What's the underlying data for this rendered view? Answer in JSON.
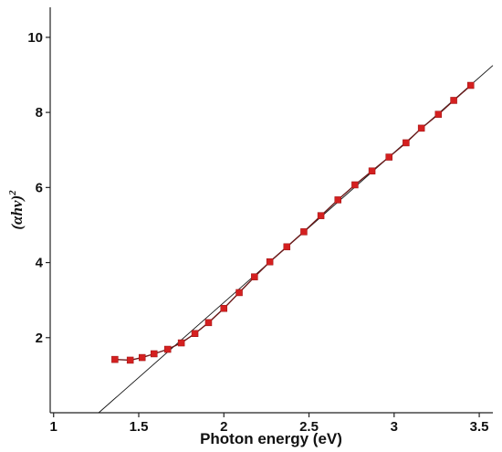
{
  "chart_data": {
    "type": "scatter",
    "xlabel": "Photon energy (eV)",
    "ylabel": "(αhν)",
    "ylabel_superscript": "2",
    "xlim": [
      0.98,
      3.58
    ],
    "ylim": [
      0,
      10.8
    ],
    "x_ticks": [
      {
        "value": 1,
        "label": "1"
      },
      {
        "value": 1.5,
        "label": "1.5"
      },
      {
        "value": 2,
        "label": "2"
      },
      {
        "value": 2.5,
        "label": "2.5"
      },
      {
        "value": 3,
        "label": "3"
      },
      {
        "value": 3.5,
        "label": "3.5"
      }
    ],
    "y_ticks": [
      {
        "value": 2,
        "label": "2"
      },
      {
        "value": 4,
        "label": "4"
      },
      {
        "value": 6,
        "label": "6"
      },
      {
        "value": 8,
        "label": "8"
      },
      {
        "value": 10,
        "label": "10"
      }
    ],
    "series": [
      {
        "color": "#d42020",
        "line_color": "#6b1a1a",
        "marker": "square",
        "points": [
          {
            "x": 1.36,
            "y": 1.42
          },
          {
            "x": 1.45,
            "y": 1.4
          },
          {
            "x": 1.52,
            "y": 1.47
          },
          {
            "x": 1.59,
            "y": 1.57
          },
          {
            "x": 1.67,
            "y": 1.69
          },
          {
            "x": 1.75,
            "y": 1.86
          },
          {
            "x": 1.83,
            "y": 2.11
          },
          {
            "x": 1.91,
            "y": 2.4
          },
          {
            "x": 2.0,
            "y": 2.78
          },
          {
            "x": 2.09,
            "y": 3.2
          },
          {
            "x": 2.18,
            "y": 3.62
          },
          {
            "x": 2.27,
            "y": 4.02
          },
          {
            "x": 2.37,
            "y": 4.42
          },
          {
            "x": 2.47,
            "y": 4.82
          },
          {
            "x": 2.57,
            "y": 5.25
          },
          {
            "x": 2.67,
            "y": 5.67
          },
          {
            "x": 2.77,
            "y": 6.07
          },
          {
            "x": 2.87,
            "y": 6.44
          },
          {
            "x": 2.97,
            "y": 6.81
          },
          {
            "x": 3.07,
            "y": 7.19
          },
          {
            "x": 3.16,
            "y": 7.58
          },
          {
            "x": 3.26,
            "y": 7.95
          },
          {
            "x": 3.35,
            "y": 8.32
          },
          {
            "x": 3.45,
            "y": 8.72
          }
        ]
      }
    ],
    "fit_line": {
      "color": "#111111",
      "from": {
        "x": 1.265,
        "y": 0
      },
      "to": {
        "x": 3.58,
        "y": 9.25
      }
    },
    "grid": false
  }
}
